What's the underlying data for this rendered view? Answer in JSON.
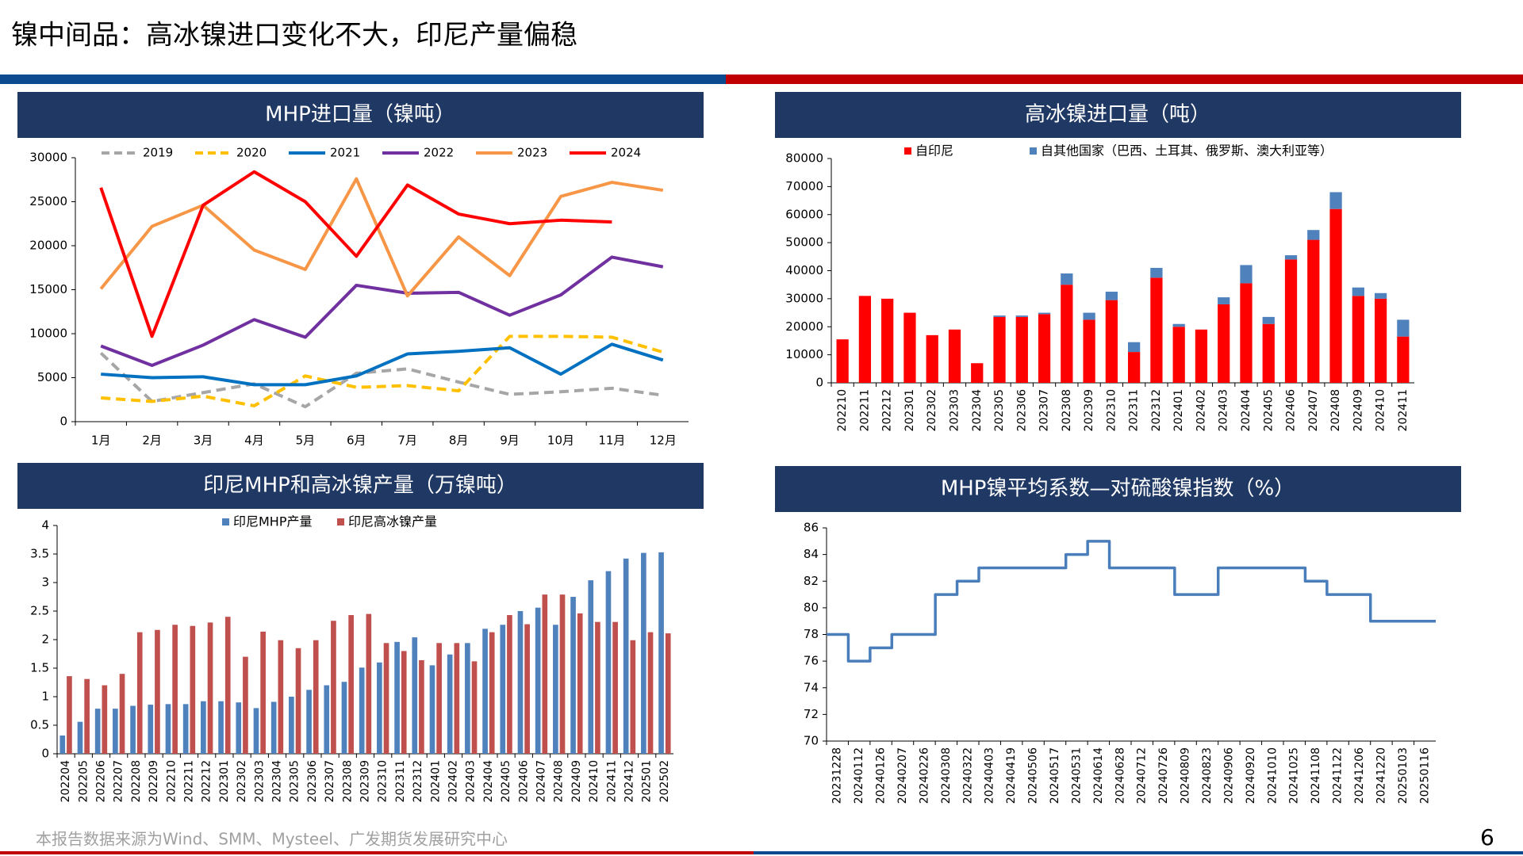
{
  "title": "镍中间品：高冰镍进口变化不大，印尼产量偏稳",
  "footer": "本报告数据来源为Wind、SMM、Mysteel、广发期货发展研究中心",
  "page": "6",
  "chart_data": [
    {
      "type": "line",
      "title": "MHP进口量（镍吨）",
      "legend": "top",
      "categories": [
        "1月",
        "2月",
        "3月",
        "4月",
        "5月",
        "6月",
        "7月",
        "8月",
        "9月",
        "10月",
        "11月",
        "12月"
      ],
      "ylim": [
        0,
        30000
      ],
      "yticks": [
        0,
        5000,
        10000,
        15000,
        20000,
        25000,
        30000
      ],
      "series": [
        {
          "name": "2019",
          "color": "#a6a6a6",
          "dash": true,
          "values": [
            7800,
            2300,
            3300,
            4300,
            1700,
            5500,
            6000,
            4500,
            3100,
            3400,
            3800,
            3000
          ]
        },
        {
          "name": "2020",
          "color": "#ffc000",
          "dash": true,
          "values": [
            2700,
            2300,
            2900,
            1800,
            5200,
            3900,
            4100,
            3500,
            9700,
            9700,
            9600,
            7900
          ]
        },
        {
          "name": "2021",
          "color": "#0070c0",
          "values": [
            5400,
            5000,
            5100,
            4200,
            4200,
            5200,
            7700,
            8000,
            8400,
            5400,
            8800,
            7000
          ]
        },
        {
          "name": "2022",
          "color": "#7030a0",
          "values": [
            8600,
            6400,
            8700,
            11600,
            9600,
            15500,
            14600,
            14700,
            12100,
            14400,
            18700,
            17600
          ]
        },
        {
          "name": "2023",
          "color": "#f79646",
          "values": [
            15100,
            22200,
            24600,
            19500,
            17300,
            27600,
            14300,
            21000,
            16600,
            25600,
            27200,
            26300
          ]
        },
        {
          "name": "2024",
          "color": "#ff0000",
          "values": [
            26600,
            9700,
            24600,
            28400,
            25000,
            18800,
            26900,
            23600,
            22500,
            22900,
            22700,
            null
          ]
        }
      ]
    },
    {
      "type": "stacked_bar",
      "title": "高冰镍进口量（吨）",
      "legend": "top",
      "categories": [
        "202210",
        "202211",
        "202212",
        "202301",
        "202302",
        "202303",
        "202304",
        "202305",
        "202306",
        "202307",
        "202308",
        "202309",
        "202310",
        "202311",
        "202312",
        "202401",
        "202402",
        "202403",
        "202404",
        "202405",
        "202406",
        "202407",
        "202408",
        "202409",
        "202410",
        "202411"
      ],
      "ylim": [
        0,
        80000
      ],
      "yticks": [
        0,
        10000,
        20000,
        30000,
        40000,
        50000,
        60000,
        70000,
        80000
      ],
      "series": [
        {
          "name": "自印尼",
          "color": "#ff0000",
          "values": [
            15500,
            31000,
            30000,
            25000,
            17000,
            19000,
            7000,
            23500,
            23500,
            24500,
            35000,
            22500,
            29500,
            11000,
            37500,
            20000,
            19000,
            28000,
            35500,
            21000,
            44000,
            51000,
            62000,
            31000,
            30000,
            16500
          ]
        },
        {
          "name": "自其他国家（巴西、土耳其、俄罗斯、澳大利亚等）",
          "color": "#4f81bd",
          "values": [
            0,
            0,
            0,
            0,
            0,
            0,
            0,
            500,
            500,
            500,
            4000,
            2500,
            3000,
            3500,
            3500,
            1000,
            0,
            2500,
            6500,
            2500,
            1500,
            3500,
            6000,
            3000,
            2000,
            6000
          ]
        }
      ]
    },
    {
      "type": "grouped_bar",
      "title": "印尼MHP和高冰镍产量（万镍吨）",
      "legend": "top",
      "categories": [
        "202204",
        "202205",
        "202206",
        "202207",
        "202208",
        "202209",
        "202210",
        "202211",
        "202212",
        "202301",
        "202302",
        "202303",
        "202304",
        "202305",
        "202306",
        "202307",
        "202308",
        "202309",
        "202310",
        "202311",
        "202312",
        "202401",
        "202402",
        "202403",
        "202404",
        "202405",
        "202406",
        "202407",
        "202408",
        "202409",
        "202410",
        "202411",
        "202412",
        "202501",
        "202502"
      ],
      "ylim": [
        0,
        4
      ],
      "yticks": [
        0,
        0.5,
        1,
        1.5,
        2,
        2.5,
        3,
        3.5,
        4
      ],
      "series": [
        {
          "name": "印尼MHP产量",
          "color": "#4f81bd",
          "values": [
            0.32,
            0.56,
            0.79,
            0.79,
            0.84,
            0.86,
            0.87,
            0.87,
            0.92,
            0.92,
            0.9,
            0.8,
            0.91,
            1.0,
            1.12,
            1.2,
            1.26,
            1.51,
            1.6,
            1.96,
            2.04,
            1.55,
            1.74,
            1.94,
            2.19,
            2.26,
            2.5,
            2.56,
            2.26,
            2.75,
            3.04,
            3.2,
            3.42,
            3.52,
            3.53
          ]
        },
        {
          "name": "印尼高冰镍产量",
          "color": "#c0504d",
          "values": [
            1.36,
            1.31,
            1.2,
            1.4,
            2.13,
            2.17,
            2.26,
            2.24,
            2.3,
            2.4,
            1.7,
            2.14,
            1.99,
            1.85,
            1.99,
            2.33,
            2.43,
            2.45,
            1.94,
            1.8,
            1.64,
            1.94,
            1.94,
            1.62,
            2.13,
            2.43,
            2.27,
            2.79,
            2.79,
            2.46,
            2.31,
            2.31,
            1.99,
            2.13,
            2.11
          ]
        }
      ]
    },
    {
      "type": "line",
      "step": true,
      "title": "MHP镍平均系数—对硫酸镍指数（%）",
      "categories": [
        "20231228",
        "20240112",
        "20240126",
        "20240207",
        "20240226",
        "20240308",
        "20240322",
        "20240403",
        "20240419",
        "20240506",
        "20240517",
        "20240531",
        "20240614",
        "20240628",
        "20240712",
        "20240726",
        "20240809",
        "20240823",
        "20240906",
        "20240920",
        "20241010",
        "20241025",
        "20241108",
        "20241122",
        "20241206",
        "20241220",
        "20250103",
        "20250116"
      ],
      "ylim": [
        70,
        86
      ],
      "yticks": [
        70,
        72,
        74,
        76,
        78,
        80,
        82,
        84,
        86
      ],
      "series": [
        {
          "color": "#4a7ebb",
          "values": [
            78,
            76,
            77,
            78,
            78,
            81,
            82,
            83,
            83,
            83,
            83,
            84,
            85,
            83,
            83,
            83,
            81,
            81,
            83,
            83,
            83,
            83,
            82,
            81,
            81,
            79,
            79,
            79
          ]
        }
      ]
    }
  ]
}
